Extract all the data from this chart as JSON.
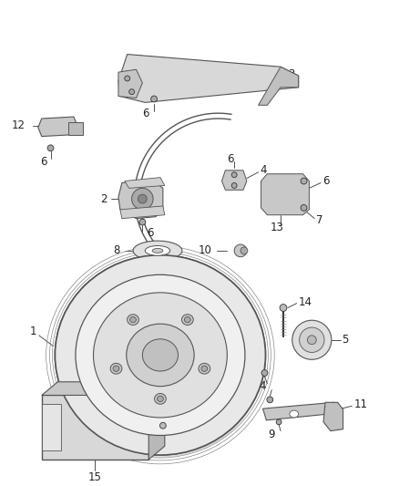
{
  "background_color": "#ffffff",
  "figsize": [
    4.38,
    5.33
  ],
  "dpi": 100,
  "line_color": "#555555",
  "dark_color": "#333333",
  "mid_color": "#888888",
  "light_color": "#cccccc",
  "font_size": 8.5
}
